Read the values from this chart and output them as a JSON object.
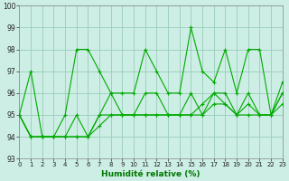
{
  "xlabel": "Humidité relative (%)",
  "xlim": [
    0,
    23
  ],
  "ylim": [
    93,
    100
  ],
  "yticks": [
    93,
    94,
    95,
    96,
    97,
    98,
    99,
    100
  ],
  "xticks": [
    0,
    1,
    2,
    3,
    4,
    5,
    6,
    7,
    8,
    9,
    10,
    11,
    12,
    13,
    14,
    15,
    16,
    17,
    18,
    19,
    20,
    21,
    22,
    23
  ],
  "background_color": "#cceee4",
  "grid_color": "#99ccbb",
  "line_color": "#00aa00",
  "lines": [
    [
      95,
      97,
      94,
      94,
      95,
      98,
      98,
      97,
      96,
      96,
      96,
      98,
      97,
      96,
      96,
      99,
      97,
      96.5,
      98,
      96,
      98,
      98,
      95,
      96
    ],
    [
      95,
      94,
      94,
      94,
      94,
      95,
      94,
      95,
      96,
      95,
      95,
      96,
      96,
      95,
      95,
      96,
      95,
      96,
      96,
      95,
      96,
      95,
      95,
      96.5
    ],
    [
      95,
      94,
      94,
      94,
      94,
      94,
      94,
      95,
      95,
      95,
      95,
      95,
      95,
      95,
      95,
      95,
      95.5,
      96,
      95.5,
      95,
      95.5,
      95,
      95,
      96
    ],
    [
      95,
      94,
      94,
      94,
      94,
      94,
      94,
      94.5,
      95,
      95,
      95,
      95,
      95,
      95,
      95,
      95,
      95,
      95.5,
      95.5,
      95,
      95,
      95,
      95,
      95.5
    ]
  ]
}
